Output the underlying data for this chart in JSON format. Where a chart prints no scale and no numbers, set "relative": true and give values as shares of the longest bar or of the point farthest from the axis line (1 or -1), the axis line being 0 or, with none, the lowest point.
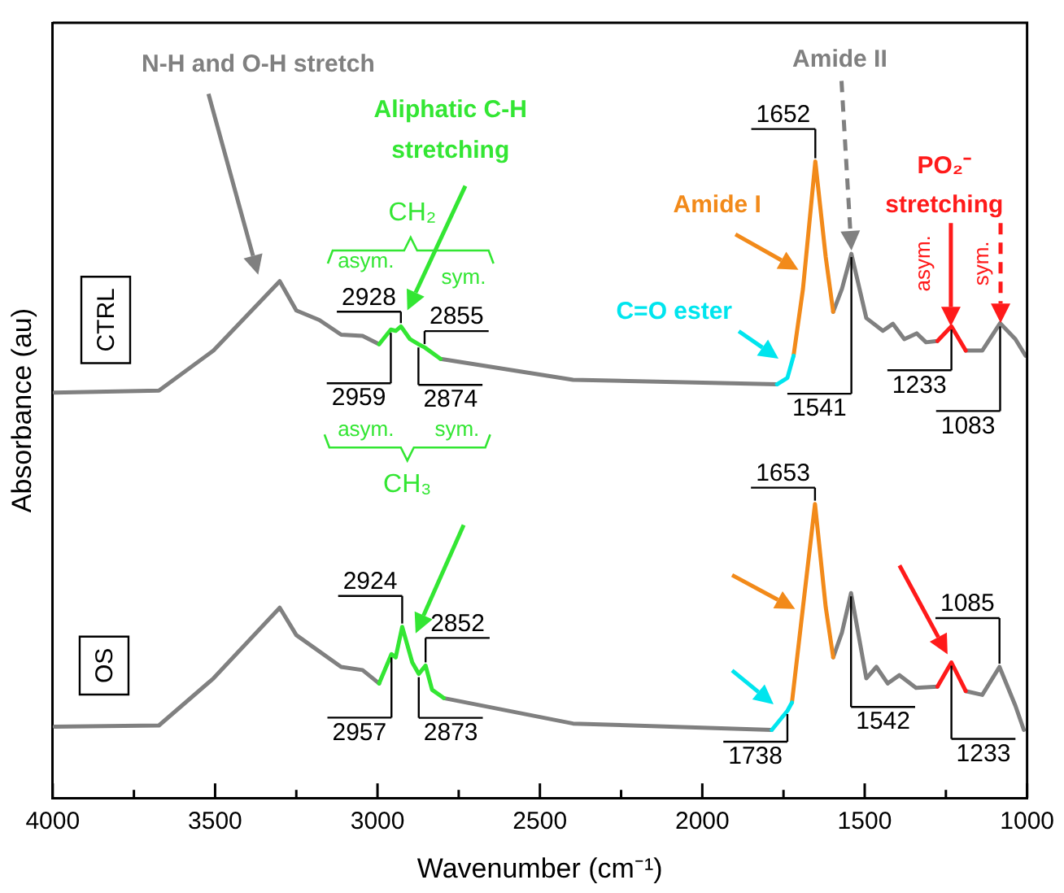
{
  "chart_data": {
    "type": "line",
    "relative": true,
    "xlabel": "Wavenumber (cm⁻¹)",
    "ylabel": "Absorbance (au)",
    "xlim": [
      4000,
      1000
    ],
    "xticks": [
      4000,
      {
        "value": 3750,
        "label": null
      },
      3500,
      {
        "value": 3250,
        "label": null
      },
      3000,
      {
        "value": 2750,
        "label": null
      },
      2500,
      {
        "value": 2250,
        "label": null
      },
      2000,
      {
        "value": 1750,
        "label": null
      },
      1500,
      {
        "value": 1250,
        "label": null
      },
      1000
    ],
    "legend": false,
    "grid": false,
    "marker": "none",
    "line_style": "solid",
    "series": [
      {
        "name": "CTRL",
        "color": "#808080",
        "x": [
          3995,
          3673,
          3505,
          3301,
          3250,
          3179,
          3112,
          3046,
          2995,
          2959,
          2944,
          2928,
          2900,
          2874,
          2855,
          2806,
          2398,
          1770,
          1738,
          1719,
          1690,
          1652,
          1620,
          1597,
          1570,
          1541,
          1495,
          1444,
          1413,
          1378,
          1340,
          1311,
          1276,
          1233,
          1189,
          1138,
          1083,
          1036,
          1005
        ],
        "values": [
          0.637,
          0.64,
          0.703,
          0.812,
          0.766,
          0.751,
          0.728,
          0.726,
          0.713,
          null,
          null,
          null,
          null,
          null,
          null,
          0.69,
          0.657,
          0.65,
          null,
          null,
          null,
          null,
          null,
          0.764,
          0.8,
          0.855,
          0.754,
          0.734,
          0.745,
          0.721,
          0.73,
          0.716,
          0.718,
          null,
          0.703,
          0.703,
          0.746,
          0.721,
          0.695
        ]
      },
      {
        "name": "OS",
        "color": "#808080",
        "x": [
          3995,
          3673,
          3505,
          3301,
          3250,
          3112,
          3046,
          2995,
          2957,
          2944,
          2924,
          2893,
          2873,
          2852,
          2832,
          2796,
          2398,
          1786,
          1738,
          1724,
          1690,
          1653,
          1620,
          1597,
          1570,
          1542,
          1495,
          1464,
          1429,
          1393,
          1342,
          1276,
          1233,
          1189,
          1138,
          1085,
          1036,
          1010
        ],
        "values": [
          0.112,
          0.114,
          0.188,
          0.299,
          0.256,
          0.206,
          0.201,
          0.18,
          null,
          null,
          null,
          null,
          null,
          null,
          null,
          0.157,
          0.117,
          0.107,
          null,
          null,
          null,
          null,
          null,
          0.221,
          0.26,
          0.322,
          0.188,
          0.206,
          0.18,
          0.193,
          0.173,
          0.175,
          null,
          0.168,
          0.162,
          0.206,
          0.145,
          0.107
        ]
      },
      {
        "color": "#33e633",
        "x": [
          2995,
          2959,
          2944,
          2928,
          2900,
          2874,
          2855,
          2806
        ],
        "values": [
          0.713,
          0.736,
          0.734,
          0.741,
          0.721,
          0.713,
          0.708,
          0.69
        ]
      },
      {
        "color": "#00e5ee",
        "x": [
          1770,
          1738,
          1719
        ],
        "values": [
          0.65,
          0.66,
          0.695
        ]
      },
      {
        "color": "#f28a1a",
        "x": [
          1719,
          1690,
          1652,
          1620,
          1597
        ],
        "values": [
          0.695,
          0.8,
          1.0,
          0.85,
          0.764
        ]
      },
      {
        "color": "#ff1a1a",
        "x": [
          1276,
          1233,
          1189
        ],
        "values": [
          0.718,
          0.741,
          0.703
        ]
      },
      {
        "color": "#33e633",
        "x": [
          2995,
          2957,
          2944,
          2924,
          2893,
          2873,
          2852,
          2832,
          2796
        ],
        "values": [
          0.18,
          0.226,
          0.221,
          0.269,
          0.213,
          0.195,
          0.208,
          0.17,
          0.157
        ]
      },
      {
        "color": "#00e5ee",
        "x": [
          1786,
          1738,
          1724
        ],
        "values": [
          0.107,
          0.137,
          0.15
        ]
      },
      {
        "color": "#f28a1a",
        "x": [
          1724,
          1690,
          1653,
          1620,
          1597
        ],
        "values": [
          0.15,
          0.3,
          0.462,
          0.3,
          0.221
        ]
      },
      {
        "color": "#ff1a1a",
        "x": [
          1276,
          1233,
          1189
        ],
        "values": [
          0.175,
          0.213,
          0.168
        ]
      }
    ],
    "annotations": [
      "N-H and O-H stretch",
      "Aliphatic C-H stretching",
      "CH₂",
      "asym.",
      "sym.",
      "asym.",
      "sym.",
      "CH₃",
      "Amide II",
      "Amide I",
      "C=O ester",
      "PO₂⁻ stretching",
      "asym.",
      "sym.",
      {
        "text": "2928",
        "x": 2928,
        "y": 0.741
      },
      {
        "text": "2855",
        "x": 2855,
        "y": 0.708
      },
      {
        "text": "2959",
        "x": 2959,
        "y": 0.736
      },
      {
        "text": "2874",
        "x": 2874,
        "y": 0.713
      },
      {
        "text": "1652",
        "x": 1652,
        "y": 1.0
      },
      {
        "text": "1541",
        "x": 1541,
        "y": 0.855
      },
      {
        "text": "1233",
        "x": 1233,
        "y": 0.741
      },
      {
        "text": "1083",
        "x": 1083,
        "y": 0.746
      },
      {
        "text": "2924",
        "x": 2924,
        "y": 0.269
      },
      {
        "text": "2852",
        "x": 2852,
        "y": 0.208
      },
      {
        "text": "2957",
        "x": 2957,
        "y": 0.226
      },
      {
        "text": "2873",
        "x": 2873,
        "y": 0.195
      },
      {
        "text": "1653",
        "x": 1653,
        "y": 0.462
      },
      {
        "text": "1738",
        "x": 1738,
        "y": 0.137
      },
      {
        "text": "1542",
        "x": 1542,
        "y": 0.322
      },
      {
        "text": "1233",
        "x": 1233,
        "y": 0.213
      },
      {
        "text": "1085",
        "x": 1085,
        "y": 0.206
      }
    ]
  }
}
